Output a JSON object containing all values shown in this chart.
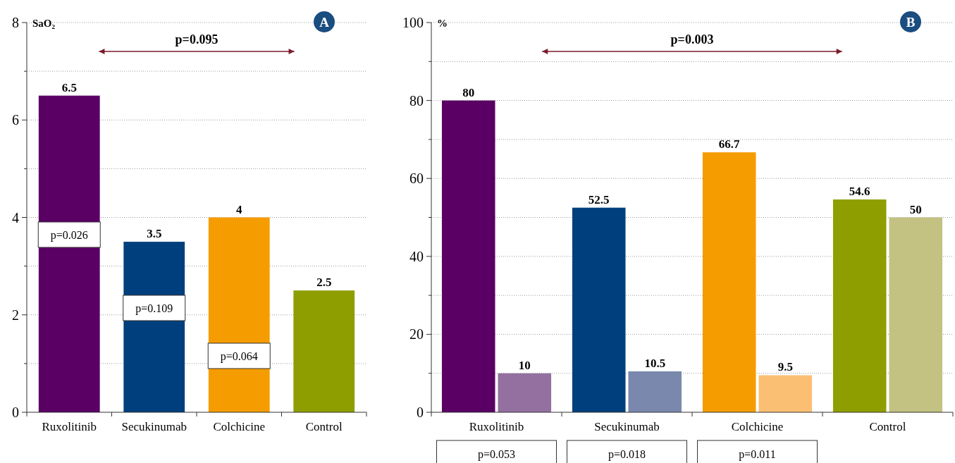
{
  "chart_data": [
    {
      "type": "bar",
      "ylabel": "SaO₂",
      "categories": [
        "Ruxolitinib",
        "Secukinumab",
        "Colchicine",
        "Control"
      ],
      "values": [
        6.5,
        3.5,
        4,
        2.5
      ],
      "colors": [
        "#5a0064",
        "#003f7d",
        "#f59c00",
        "#8e9e00"
      ],
      "ylim": [
        0,
        8
      ],
      "yticks": [
        0,
        {
          "value": 1,
          "label": null
        },
        2,
        {
          "value": 3,
          "label": null
        },
        4,
        {
          "value": 5,
          "label": null
        },
        6,
        {
          "value": 7,
          "label": null
        },
        8
      ],
      "grid": true,
      "data_labels": true,
      "annotations": [
        "A",
        "p=0.095",
        "p=0.026",
        "p=0.109",
        "p=0.064"
      ]
    },
    {
      "type": "bar",
      "ylabel": "%",
      "categories": [
        "Ruxolitinib",
        "Secukinumab",
        "Colchicine",
        "Control"
      ],
      "series": [
        {
          "values": [
            80,
            52.5,
            66.7,
            54.6
          ],
          "colors": [
            "#5a0064",
            "#003f7d",
            "#f59c00",
            "#8e9e00"
          ]
        },
        {
          "values": [
            10,
            10.5,
            9.5,
            50
          ],
          "colors": [
            "#9370a0",
            "#7a88ad",
            "#fbbf74",
            "#c3c282"
          ]
        }
      ],
      "ylim": [
        0,
        100
      ],
      "yticks": [
        0,
        {
          "value": 10,
          "label": null
        },
        20,
        {
          "value": 30,
          "label": null
        },
        40,
        {
          "value": 50,
          "label": null
        },
        60,
        {
          "value": 70,
          "label": null
        },
        80,
        {
          "value": 90,
          "label": null
        },
        100
      ],
      "grid": true,
      "data_labels": true,
      "annotations": [
        "B",
        "p=0.003",
        "p=0.053",
        "p=0.018",
        "p=0.011"
      ]
    }
  ]
}
